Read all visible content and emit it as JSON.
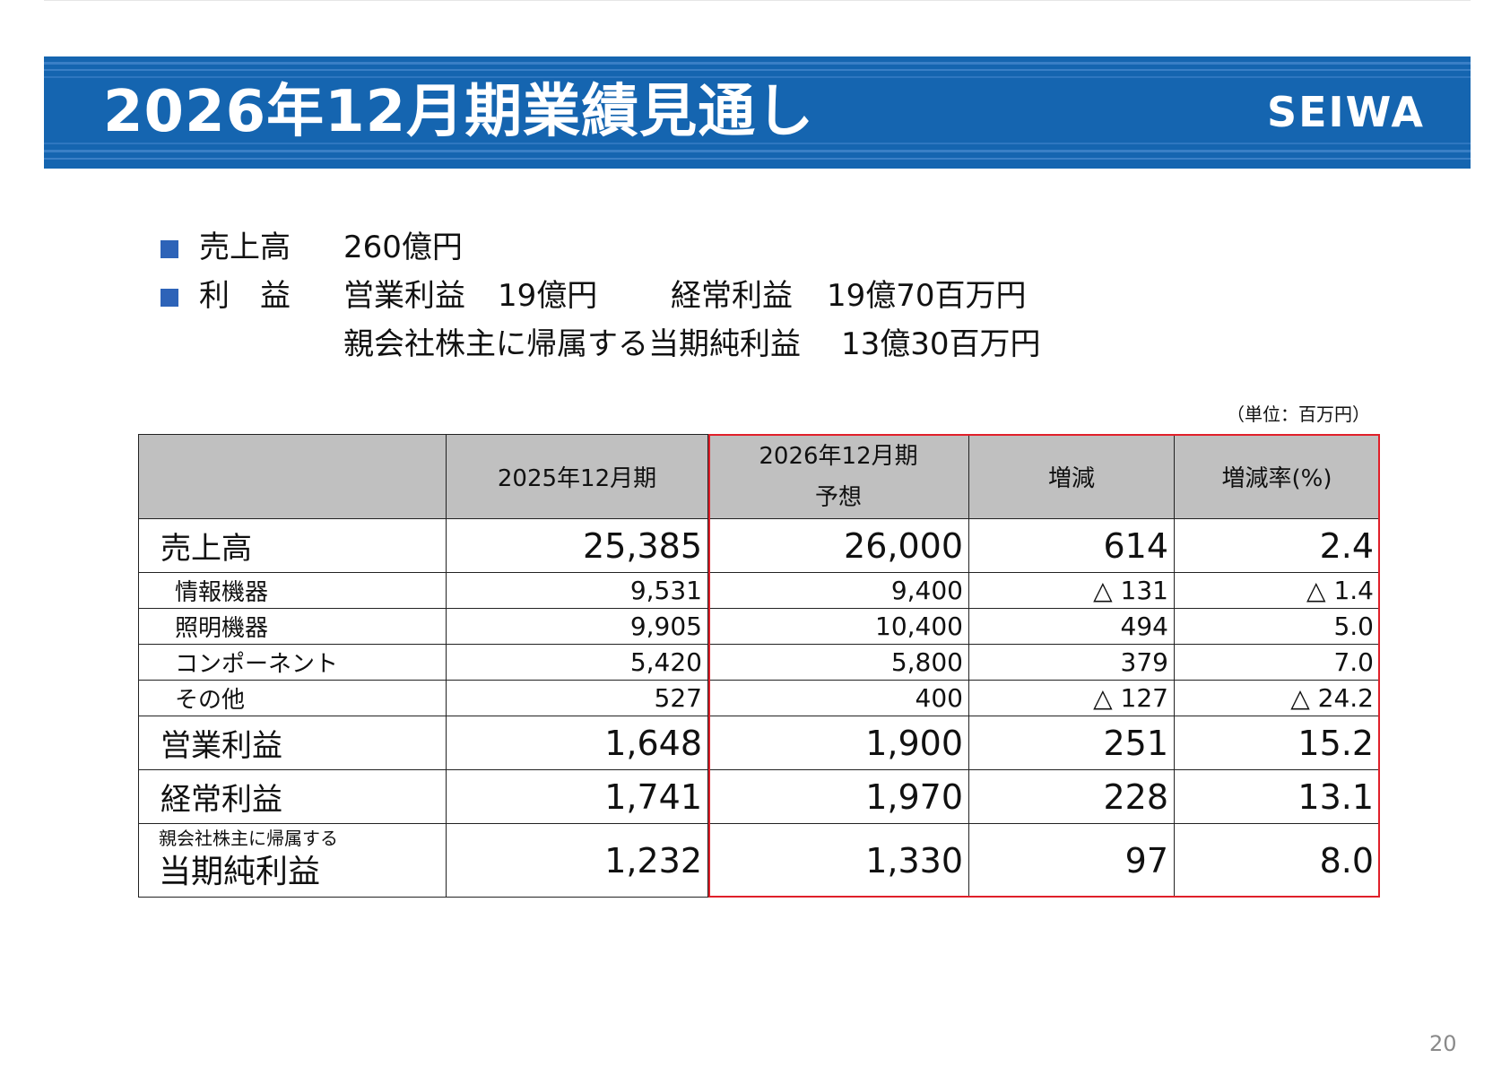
{
  "header": {
    "title": "2026年12月期業績見通し",
    "logo_text": "SEIWA"
  },
  "summary": {
    "line1": {
      "label": "売上高",
      "value": "260億円"
    },
    "line2": {
      "label": "利　益",
      "op_label": "営業利益",
      "op_value": "19億円",
      "ord_label": "経常利益",
      "ord_value": "19億70百万円"
    },
    "line3": {
      "label": "親会社株主に帰属する当期純利益",
      "value": "13億30百万円"
    }
  },
  "unit_note": "（単位：百万円）",
  "table": {
    "headers": {
      "col1": "2025年12月期",
      "col2_line1": "2026年12月期",
      "col2_line2": "予想",
      "col3": "増減",
      "col4": "増減率(%)"
    },
    "rows": [
      {
        "label": "売上高",
        "v2025": "25,385",
        "v2026": "26,000",
        "diff": "614",
        "rate": "2.4"
      },
      {
        "label": "情報機器",
        "v2025": "9,531",
        "v2026": "9,400",
        "diff": "△ 131",
        "rate": "△ 1.4"
      },
      {
        "label": "照明機器",
        "v2025": "9,905",
        "v2026": "10,400",
        "diff": "494",
        "rate": "5.0"
      },
      {
        "label": "コンポーネント",
        "v2025": "5,420",
        "v2026": "5,800",
        "diff": "379",
        "rate": "7.0"
      },
      {
        "label": "その他",
        "v2025": "527",
        "v2026": "400",
        "diff": "△ 127",
        "rate": "△ 24.2"
      },
      {
        "label": "営業利益",
        "v2025": "1,648",
        "v2026": "1,900",
        "diff": "251",
        "rate": "15.2"
      },
      {
        "label": "経常利益",
        "v2025": "1,741",
        "v2026": "1,970",
        "diff": "228",
        "rate": "13.1"
      },
      {
        "label_small": "親会社株主に帰属する",
        "label": "当期純利益",
        "v2025": "1,232",
        "v2026": "1,330",
        "diff": "97",
        "rate": "8.0"
      }
    ]
  },
  "page_number": "20",
  "colors": {
    "banner": "#1565b0",
    "bullet": "#2d63b8",
    "highlight_border": "#e0202a",
    "header_fill": "#c0c0c0"
  }
}
